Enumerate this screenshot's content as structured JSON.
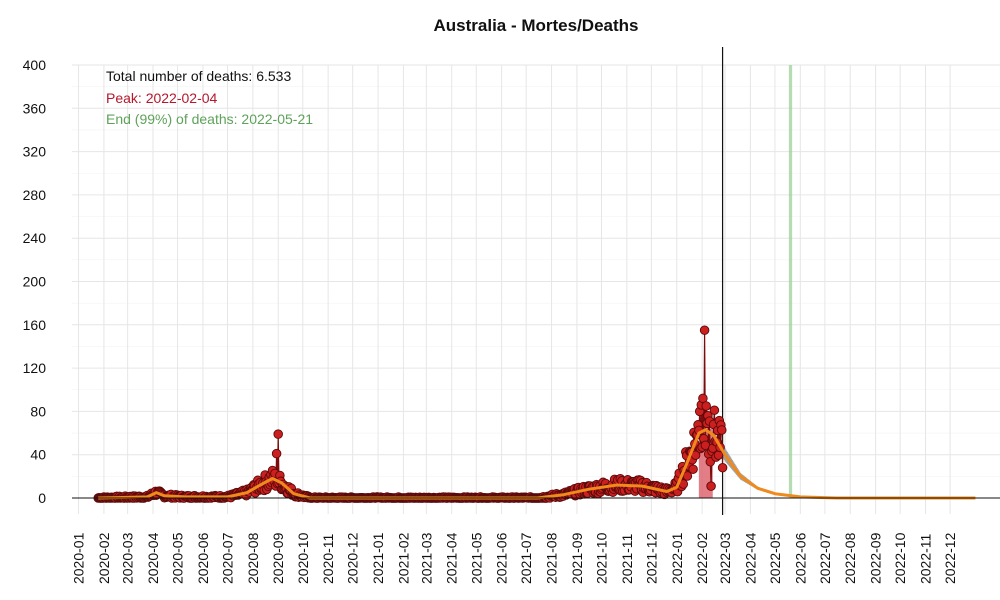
{
  "chart_data": {
    "type": "line",
    "title": "Australia - Mortes/Deaths",
    "xlabel": "",
    "ylabel": "",
    "ylim": [
      0,
      400
    ],
    "yticks": [
      0,
      40,
      80,
      120,
      160,
      200,
      240,
      280,
      320,
      360,
      400
    ],
    "xlim": [
      "2019-12-24",
      "2023-01-31"
    ],
    "xticks": [
      "2020-01",
      "2020-02",
      "2020-03",
      "2020-04",
      "2020-05",
      "2020-06",
      "2020-07",
      "2020-08",
      "2020-09",
      "2020-10",
      "2020-11",
      "2020-12",
      "2021-01",
      "2021-02",
      "2021-03",
      "2021-04",
      "2021-05",
      "2021-06",
      "2021-07",
      "2021-08",
      "2021-09",
      "2021-10",
      "2021-11",
      "2021-12",
      "2022-01",
      "2022-02",
      "2022-03",
      "2022-04",
      "2022-05",
      "2022-06",
      "2022-07",
      "2022-08",
      "2022-09",
      "2022-10",
      "2022-11",
      "2022-12"
    ],
    "grid": true,
    "annotations": {
      "total": "Total number of deaths: 6.533",
      "peak": "Peak: 2022-02-04",
      "end": "End (99%) of deaths: 2022-05-21"
    },
    "colors": {
      "points": "#cc1f1f",
      "points_stroke": "#5a0a0a",
      "daily_line": "#7a0c0c",
      "fit": "#f08a1c",
      "peak_band": "#d9535f",
      "projection_band": "#9a9a9a",
      "end_band": "#9cd09a",
      "today_line": "#111111",
      "peak_text": "#b5182b",
      "end_text": "#5ea25a"
    },
    "today_date": "2022-02-26",
    "peak_band": [
      "2022-01-28",
      "2022-02-14"
    ],
    "end_band": [
      "2022-05-18",
      "2022-05-22"
    ],
    "spike_points": [
      {
        "date": "2020-08-30",
        "value": 41
      },
      {
        "date": "2020-09-01",
        "value": 59
      },
      {
        "date": "2022-01-25",
        "value": 58
      },
      {
        "date": "2022-01-29",
        "value": 80
      },
      {
        "date": "2022-01-31",
        "value": 86
      },
      {
        "date": "2022-02-02",
        "value": 92
      },
      {
        "date": "2022-02-04",
        "value": 155
      },
      {
        "date": "2022-02-06",
        "value": 85
      },
      {
        "date": "2022-02-08",
        "value": 76
      },
      {
        "date": "2022-02-10",
        "value": 71
      },
      {
        "date": "2022-02-12",
        "value": 11
      },
      {
        "date": "2022-02-15",
        "value": 68
      }
    ],
    "fit_curve": [
      {
        "date": "2020-01-25",
        "value": 0
      },
      {
        "date": "2020-03-25",
        "value": 1
      },
      {
        "date": "2020-04-05",
        "value": 5
      },
      {
        "date": "2020-04-15",
        "value": 2
      },
      {
        "date": "2020-05-10",
        "value": 1
      },
      {
        "date": "2020-07-01",
        "value": 1
      },
      {
        "date": "2020-07-25",
        "value": 5
      },
      {
        "date": "2020-08-10",
        "value": 12
      },
      {
        "date": "2020-08-25",
        "value": 18
      },
      {
        "date": "2020-09-05",
        "value": 14
      },
      {
        "date": "2020-09-20",
        "value": 4
      },
      {
        "date": "2020-10-10",
        "value": 0
      },
      {
        "date": "2021-07-15",
        "value": 0
      },
      {
        "date": "2021-08-15",
        "value": 3
      },
      {
        "date": "2021-09-15",
        "value": 8
      },
      {
        "date": "2021-10-20",
        "value": 12
      },
      {
        "date": "2021-11-20",
        "value": 11
      },
      {
        "date": "2021-12-20",
        "value": 6
      },
      {
        "date": "2022-01-01",
        "value": 10
      },
      {
        "date": "2022-01-15",
        "value": 35
      },
      {
        "date": "2022-01-28",
        "value": 60
      },
      {
        "date": "2022-02-05",
        "value": 63
      },
      {
        "date": "2022-02-15",
        "value": 58
      },
      {
        "date": "2022-03-01",
        "value": 40
      },
      {
        "date": "2022-03-20",
        "value": 20
      },
      {
        "date": "2022-04-10",
        "value": 9
      },
      {
        "date": "2022-05-01",
        "value": 4
      },
      {
        "date": "2022-06-01",
        "value": 1
      },
      {
        "date": "2022-07-15",
        "value": 0
      },
      {
        "date": "2023-01-01",
        "value": 0
      }
    ]
  }
}
